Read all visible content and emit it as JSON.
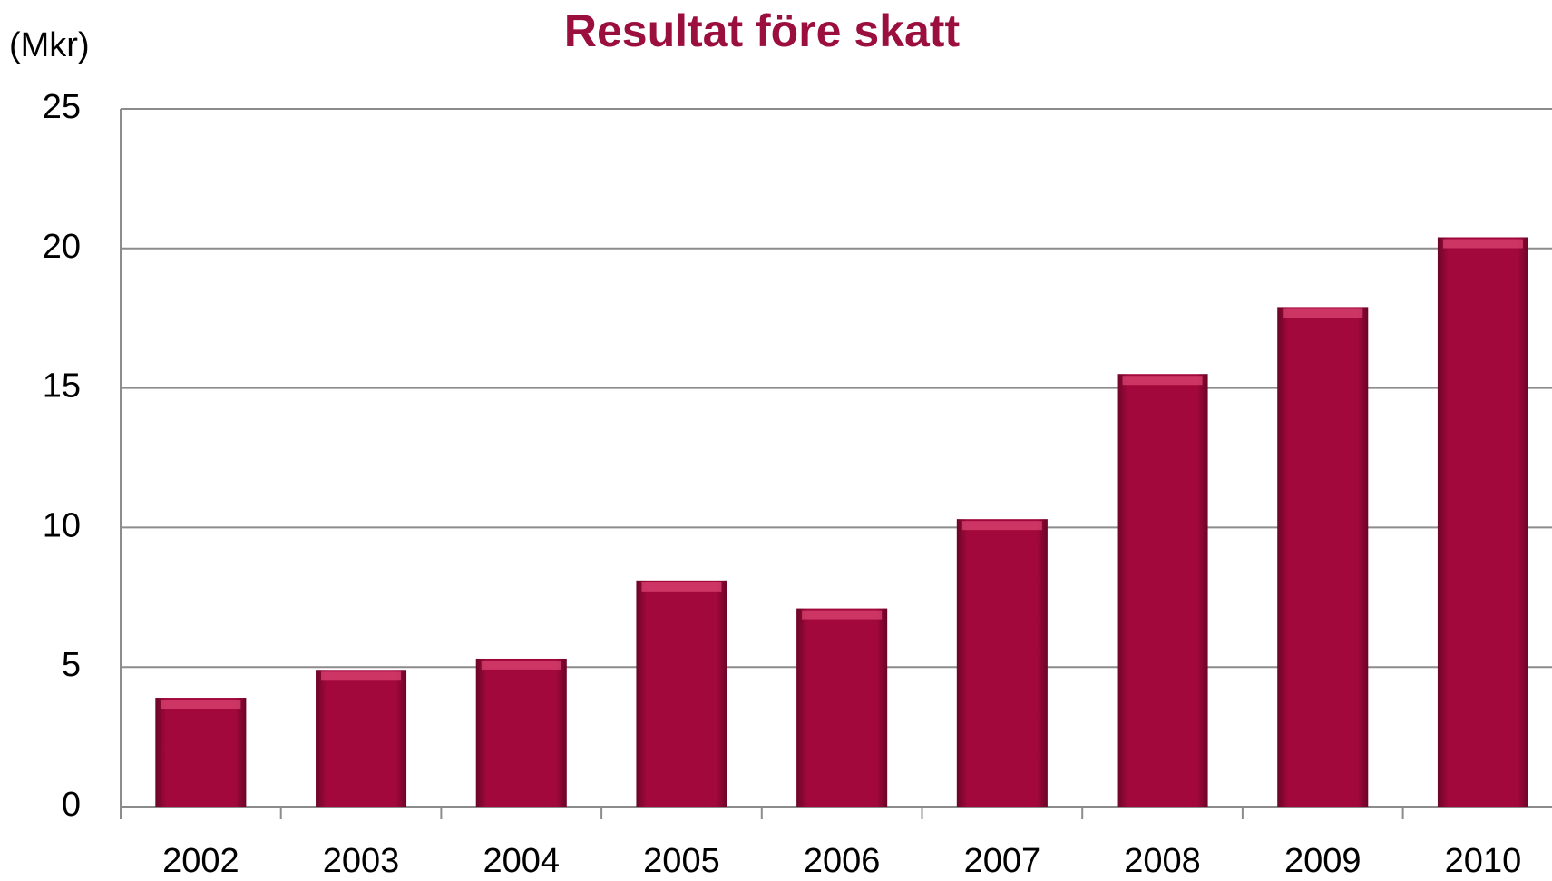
{
  "chart_data": {
    "type": "bar",
    "title": "Resultat före skatt",
    "y_axis_label": "(Mkr)",
    "categories": [
      "2002",
      "2003",
      "2004",
      "2005",
      "2006",
      "2007",
      "2008",
      "2009",
      "2010"
    ],
    "values": [
      3.9,
      4.9,
      5.3,
      8.1,
      7.1,
      10.3,
      15.5,
      17.9,
      20.4
    ],
    "color": "#a3083c",
    "ylim": [
      0,
      25
    ],
    "yticks": [
      0,
      5,
      10,
      15,
      20,
      25
    ],
    "grid": true
  }
}
